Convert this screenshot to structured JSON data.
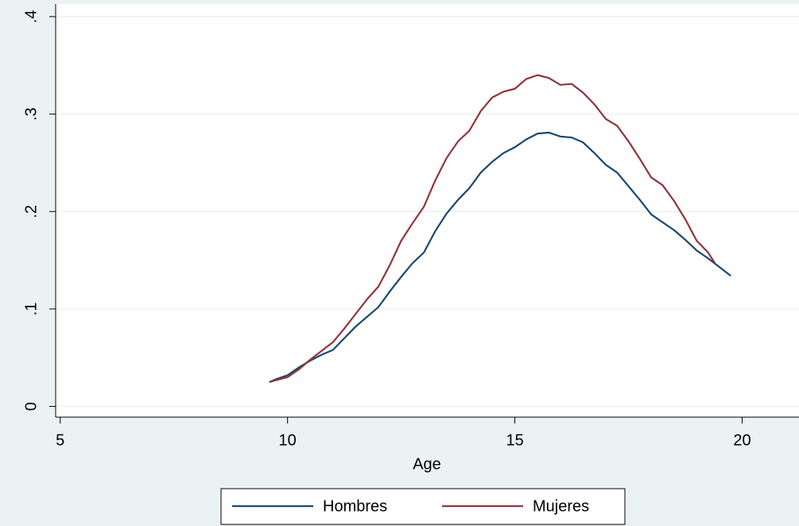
{
  "chart_data": {
    "type": "line",
    "xlabel": "Age",
    "xlim": [
      4.9,
      21.25
    ],
    "ylim": [
      -0.011,
      0.413
    ],
    "xticks": [
      5,
      10,
      15,
      20
    ],
    "yticks": [
      0,
      {
        "value": 0.1,
        "label": ".1"
      },
      {
        "value": 0.2,
        "label": ".2"
      },
      {
        "value": 0.3,
        "label": ".3"
      },
      {
        "value": 0.4,
        "label": ".4"
      }
    ],
    "grid": true,
    "legend": "bottom",
    "series": [
      {
        "name": "Hombres",
        "color": "#1a476f",
        "x": [
          9.6,
          9.75,
          10,
          10.25,
          10.5,
          10.75,
          11,
          11.25,
          11.5,
          11.75,
          12,
          12.25,
          12.5,
          12.75,
          13,
          13.25,
          13.5,
          13.75,
          14,
          14.25,
          14.5,
          14.75,
          15,
          15.25,
          15.5,
          15.75,
          16,
          16.25,
          16.5,
          16.75,
          17,
          17.25,
          17.5,
          17.75,
          18,
          18.25,
          18.5,
          18.75,
          19,
          19.25,
          19.5,
          19.75
        ],
        "values": [
          0.025,
          0.028,
          0.032,
          0.04,
          0.047,
          0.053,
          0.058,
          0.07,
          0.082,
          0.092,
          0.102,
          0.118,
          0.133,
          0.147,
          0.158,
          0.18,
          0.198,
          0.212,
          0.224,
          0.24,
          0.251,
          0.26,
          0.266,
          0.274,
          0.28,
          0.281,
          0.277,
          0.276,
          0.271,
          0.26,
          0.248,
          0.24,
          0.226,
          0.212,
          0.197,
          0.189,
          0.181,
          0.171,
          0.16,
          0.152,
          0.143,
          0.134
        ]
      },
      {
        "name": "Mujeres",
        "color": "#90353b",
        "x": [
          9.6,
          9.75,
          10,
          10.25,
          10.5,
          10.75,
          11,
          11.25,
          11.5,
          11.75,
          12,
          12.25,
          12.5,
          12.75,
          13,
          13.25,
          13.5,
          13.75,
          14,
          14.25,
          14.5,
          14.75,
          15,
          15.25,
          15.5,
          15.75,
          16,
          16.25,
          16.5,
          16.75,
          17,
          17.25,
          17.5,
          17.75,
          18,
          18.25,
          18.5,
          18.75,
          19,
          19.25,
          19.4
        ],
        "values": [
          0.025,
          0.027,
          0.03,
          0.038,
          0.048,
          0.057,
          0.066,
          0.08,
          0.095,
          0.11,
          0.123,
          0.145,
          0.17,
          0.188,
          0.205,
          0.232,
          0.255,
          0.272,
          0.283,
          0.303,
          0.317,
          0.323,
          0.326,
          0.336,
          0.34,
          0.337,
          0.33,
          0.331,
          0.322,
          0.31,
          0.295,
          0.288,
          0.272,
          0.254,
          0.235,
          0.227,
          0.211,
          0.192,
          0.17,
          0.158,
          0.147
        ]
      }
    ]
  }
}
